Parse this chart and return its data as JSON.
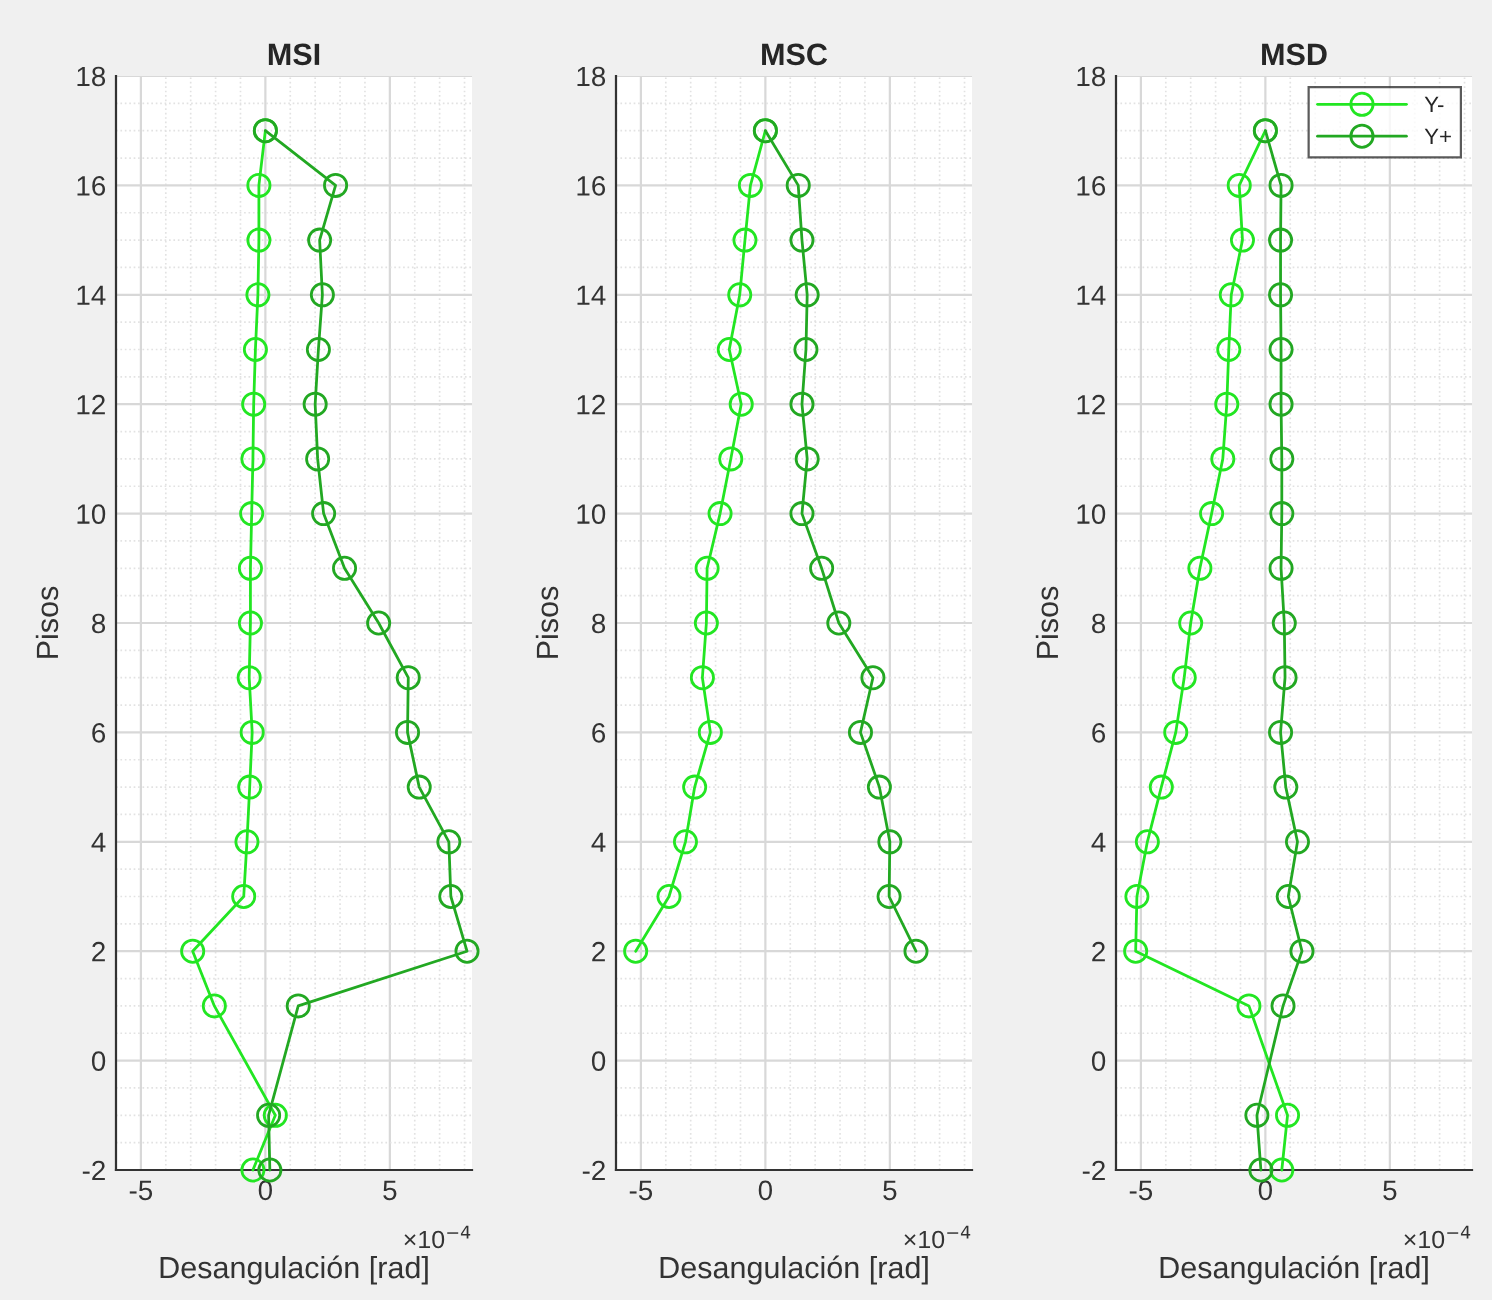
{
  "chart_data": [
    {
      "type": "line",
      "title": "MSI",
      "xlabel": "Desangulación [rad]",
      "ylabel": "Pisos",
      "annotations": [
        "×10$^{−4}$"
      ],
      "xlim": [
        -6,
        8.3
      ],
      "xticks": [
        -5,
        0,
        5
      ],
      "ylim": [
        -2,
        18
      ],
      "yticks": [
        -2,
        0,
        2,
        4,
        6,
        8,
        10,
        12,
        14,
        16,
        18
      ],
      "grid": true,
      "marker": "circle",
      "line_style": "solid",
      "series": [
        {
          "color": "#22e622",
          "x": [
            -0.5,
            0.4,
            -2.05,
            -2.92,
            -0.87,
            -0.74,
            -0.63,
            -0.53,
            -0.65,
            -0.6,
            -0.6,
            -0.55,
            -0.5,
            -0.47,
            -0.4,
            -0.3,
            -0.26,
            -0.26,
            0
          ],
          "values": [
            -2,
            -1,
            1,
            2,
            3,
            4,
            5,
            6,
            7,
            8,
            9,
            10,
            11,
            12,
            13,
            14,
            15,
            16,
            17
          ]
        },
        {
          "color": "#22a822",
          "x": [
            0.18,
            0.13,
            1.32,
            8.1,
            7.45,
            7.37,
            6.18,
            5.71,
            5.74,
            4.55,
            3.18,
            2.34,
            2.1,
            2.0,
            2.13,
            2.29,
            2.18,
            2.82,
            0
          ],
          "values": [
            -2,
            -1,
            1,
            2,
            3,
            4,
            5,
            6,
            7,
            8,
            9,
            10,
            11,
            12,
            13,
            14,
            15,
            16,
            17
          ]
        }
      ]
    },
    {
      "type": "line",
      "title": "MSC",
      "xlabel": "Desangulación [rad]",
      "ylabel": "Pisos",
      "annotations": [
        "×10$^{−4}$"
      ],
      "xlim": [
        -6,
        8.3
      ],
      "xticks": [
        -5,
        0,
        5
      ],
      "ylim": [
        -2,
        18
      ],
      "yticks": [
        -2,
        0,
        2,
        4,
        6,
        8,
        10,
        12,
        14,
        16,
        18
      ],
      "grid": true,
      "marker": "circle",
      "line_style": "solid",
      "series": [
        {
          "color": "#22e622",
          "x": [
            -5.21,
            -3.87,
            -3.21,
            -2.84,
            -2.21,
            -2.53,
            -2.37,
            -2.34,
            -1.82,
            -1.39,
            -0.97,
            -1.45,
            -1.03,
            -0.82,
            -0.6,
            0
          ],
          "values": [
            2,
            3,
            4,
            5,
            6,
            7,
            8,
            9,
            10,
            11,
            12,
            13,
            14,
            15,
            16,
            17
          ]
        },
        {
          "color": "#22a822",
          "x": [
            6.05,
            4.97,
            5.0,
            4.58,
            3.82,
            4.32,
            2.95,
            2.26,
            1.47,
            1.68,
            1.47,
            1.63,
            1.68,
            1.47,
            1.32,
            0
          ],
          "values": [
            2,
            3,
            4,
            5,
            6,
            7,
            8,
            9,
            10,
            11,
            12,
            13,
            14,
            15,
            16,
            17
          ]
        }
      ]
    },
    {
      "type": "line",
      "title": "MSD",
      "xlabel": "Desangulación [rad]",
      "ylabel": "Pisos",
      "annotations": [
        "×10$^{−4}$"
      ],
      "xlim": [
        -6,
        8.3
      ],
      "xticks": [
        -5,
        0,
        5
      ],
      "ylim": [
        -2,
        18
      ],
      "yticks": [
        -2,
        0,
        2,
        4,
        6,
        8,
        10,
        12,
        14,
        16,
        18
      ],
      "grid": true,
      "marker": "circle",
      "line_style": "solid",
      "legend": "top right",
      "series": [
        {
          "name": "Y-",
          "color": "#22e622",
          "x": [
            0.66,
            0.89,
            -0.66,
            -5.21,
            -5.16,
            -4.74,
            -4.18,
            -3.6,
            -3.26,
            -3.0,
            -2.63,
            -2.16,
            -1.71,
            -1.55,
            -1.47,
            -1.37,
            -0.92,
            -1.05,
            0
          ],
          "values": [
            -2,
            -1,
            1,
            2,
            3,
            4,
            5,
            6,
            7,
            8,
            9,
            10,
            11,
            12,
            13,
            14,
            15,
            16,
            17
          ]
        },
        {
          "name": "Y+",
          "color": "#22a822",
          "x": [
            -0.18,
            -0.34,
            0.71,
            1.47,
            0.92,
            1.29,
            0.82,
            0.61,
            0.79,
            0.76,
            0.63,
            0.66,
            0.66,
            0.63,
            0.63,
            0.61,
            0.61,
            0.63,
            0
          ],
          "values": [
            -2,
            -1,
            1,
            2,
            3,
            4,
            5,
            6,
            7,
            8,
            9,
            10,
            11,
            12,
            13,
            14,
            15,
            16,
            17
          ]
        }
      ]
    }
  ]
}
